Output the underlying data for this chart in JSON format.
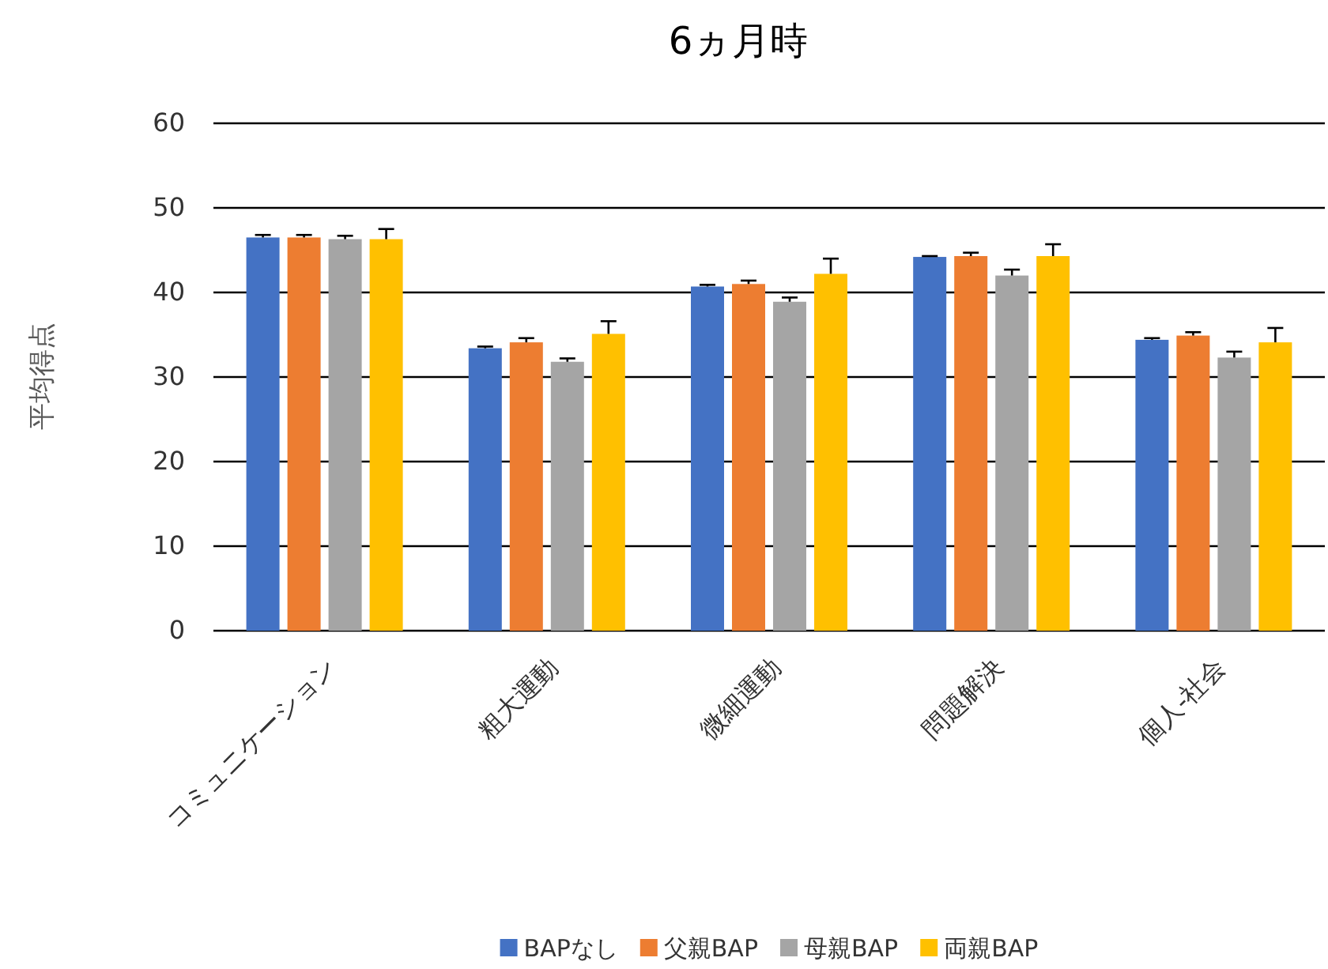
{
  "chart_data": {
    "type": "bar",
    "title": "6ヵ月時",
    "ylabel": "平均得点",
    "categories": [
      "コミュニケーション",
      "粗大運動",
      "微細運動",
      "問題解決",
      "個人-社会"
    ],
    "series": [
      {
        "name": "BAPなし",
        "color": "#4472c4",
        "values": [
          46.5,
          33.4,
          40.7,
          44.2,
          34.4
        ],
        "errors": [
          [
            46.5,
            46.8
          ],
          [
            33.4,
            33.6
          ],
          [
            40.7,
            40.9
          ],
          [
            44.2,
            44.3
          ],
          [
            34.4,
            34.6
          ]
        ]
      },
      {
        "name": "父親BAP",
        "color": "#ed7d31",
        "values": [
          46.5,
          34.1,
          41.0,
          44.3,
          34.9
        ],
        "errors": [
          [
            46.5,
            46.8
          ],
          [
            34.1,
            34.6
          ],
          [
            41.0,
            41.4
          ],
          [
            44.3,
            44.7
          ],
          [
            34.9,
            35.3
          ]
        ]
      },
      {
        "name": "母親BAP",
        "color": "#a5a5a5",
        "values": [
          46.3,
          31.8,
          38.9,
          42.0,
          32.3
        ],
        "errors": [
          [
            46.3,
            46.7
          ],
          [
            31.8,
            32.2
          ],
          [
            38.9,
            39.4
          ],
          [
            42.0,
            42.7
          ],
          [
            32.3,
            33.0
          ]
        ]
      },
      {
        "name": "両親BAP",
        "color": "#ffc000",
        "values": [
          46.3,
          35.1,
          42.2,
          44.3,
          34.1
        ],
        "errors": [
          [
            46.3,
            47.5
          ],
          [
            35.1,
            36.6
          ],
          [
            42.2,
            44.0
          ],
          [
            44.3,
            45.7
          ],
          [
            34.1,
            35.8
          ]
        ]
      }
    ],
    "ylim": [
      0,
      60
    ],
    "yticks": [
      0,
      10,
      20,
      30,
      40,
      50,
      60
    ],
    "grid": "y",
    "legend": "bottom"
  }
}
